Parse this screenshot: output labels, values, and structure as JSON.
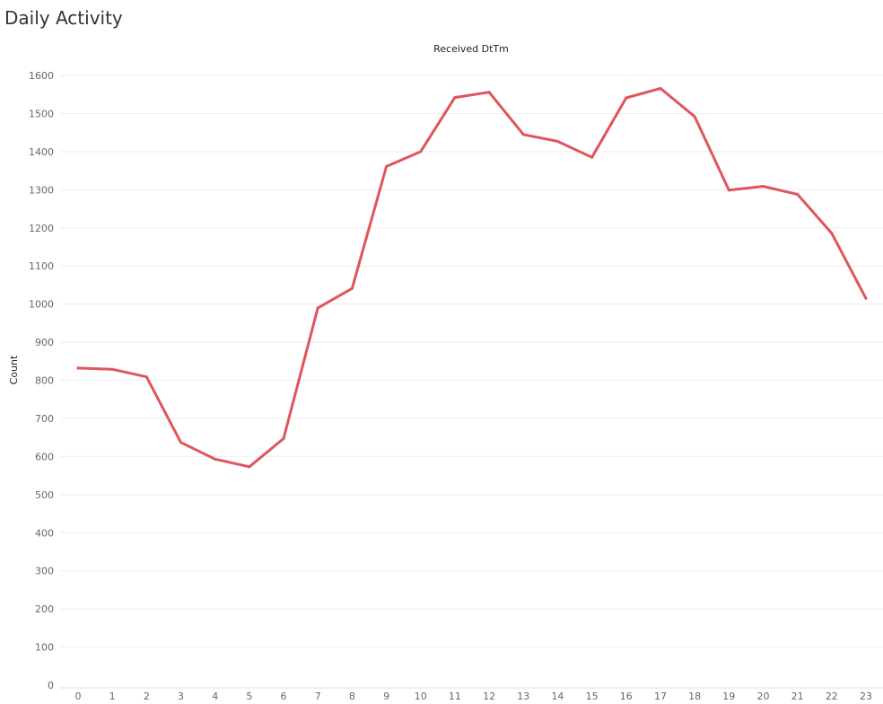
{
  "page": {
    "title": "Daily Activity"
  },
  "chart_data": {
    "type": "line",
    "title": "",
    "xlabel": "Received DtTm",
    "ylabel": "Count",
    "x": [
      0,
      1,
      2,
      3,
      4,
      5,
      6,
      7,
      8,
      9,
      10,
      11,
      12,
      13,
      14,
      15,
      16,
      17,
      18,
      19,
      20,
      21,
      22,
      23
    ],
    "series": [
      {
        "values": [
          832,
          829,
          809,
          637,
          593,
          573,
          647,
          990,
          1041,
          1361,
          1400,
          1542,
          1556,
          1445,
          1427,
          1385,
          1541,
          1566,
          1492,
          1299,
          1309,
          1288,
          1186,
          1015
        ]
      }
    ],
    "ylim": [
      0,
      1630
    ],
    "yticks": [
      0,
      100,
      200,
      300,
      400,
      500,
      600,
      700,
      800,
      900,
      1000,
      1100,
      1200,
      1300,
      1400,
      1500,
      1600
    ],
    "grid": true,
    "legend": "none",
    "line_color": "#e0555c",
    "grid_color": "#eeeeee"
  }
}
